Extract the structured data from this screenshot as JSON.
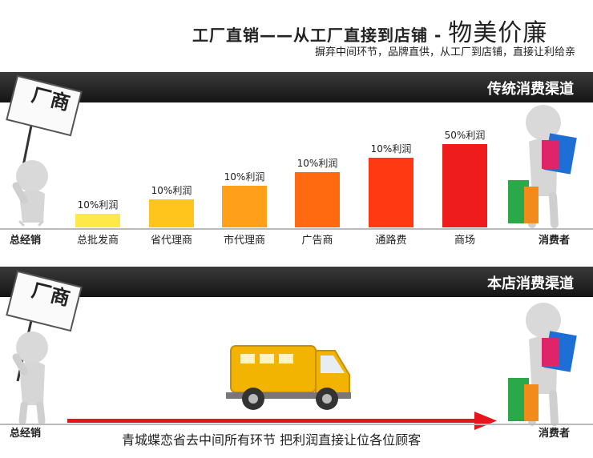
{
  "header": {
    "title_part": "工厂直销——从工厂直接到店铺",
    "title_dash": "-",
    "title_big": "物美价廉",
    "subtitle": "摒弃中间环节，品牌直供，从工厂到店铺，直接让利给亲"
  },
  "traditional": {
    "band_label": "传统消费渠道",
    "sign_text": "厂商",
    "left_label": "总经销",
    "right_label": "消费者"
  },
  "direct": {
    "band_label": "本店消费渠道",
    "sign_text": "厂商",
    "left_label": "总经销",
    "right_label": "消费者",
    "caption": "青城蝶恋省去中间所有环节 把利润直接让位各位顾客"
  },
  "colors": {
    "band": "#1e1e1e",
    "arrow": "#e8141c",
    "truck": "#f2b400",
    "bar_colors": [
      "#ffe94a",
      "#ffc51c",
      "#ff9f1a",
      "#ff6a10",
      "#ff3a12",
      "#ee1c1c"
    ]
  },
  "chart_data": {
    "type": "bar",
    "categories": [
      "总批发商",
      "省代理商",
      "市代理商",
      "广告商",
      "通路费",
      "商场"
    ],
    "data_labels": [
      "10%利润",
      "10%利润",
      "10%利润",
      "10%利润",
      "10%利润",
      "50%利润"
    ],
    "values": [
      1,
      2,
      3,
      4,
      5,
      6
    ],
    "ylim": [
      0,
      6
    ],
    "grid": false,
    "legend": "none"
  }
}
